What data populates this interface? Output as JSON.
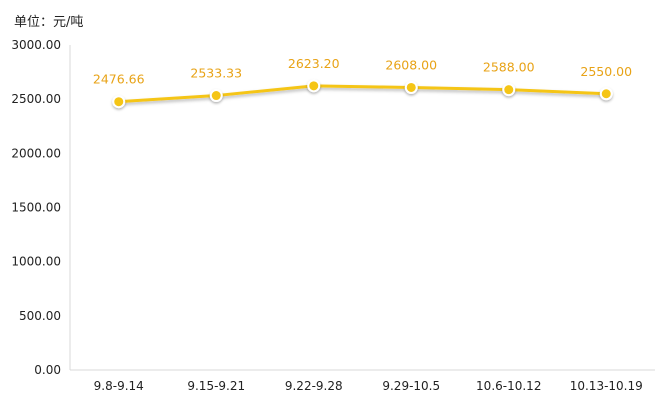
{
  "unit_label": "单位：元/吨",
  "colors": {
    "series": "#F5C518",
    "data_label": "#E8A317",
    "axis": "#d9d9d9",
    "text": "#222222"
  },
  "chart_data": {
    "type": "line",
    "categories": [
      "9.8-9.14",
      "9.15-9.21",
      "9.22-9.28",
      "9.29-10.5",
      "10.6-10.12",
      "10.13-10.19"
    ],
    "series": [
      {
        "values": [
          2476.66,
          2533.33,
          2623.2,
          2608.0,
          2588.0,
          2550.0
        ],
        "labels": [
          "2476.66",
          "2533.33",
          "2623.20",
          "2608.00",
          "2588.00",
          "2550.00"
        ]
      }
    ],
    "y_ticks": [
      "0.00",
      "500.00",
      "1000.00",
      "1500.00",
      "2000.00",
      "2500.00",
      "3000.00"
    ],
    "ylim": [
      0,
      3000
    ],
    "grid": false,
    "legend": "none"
  }
}
